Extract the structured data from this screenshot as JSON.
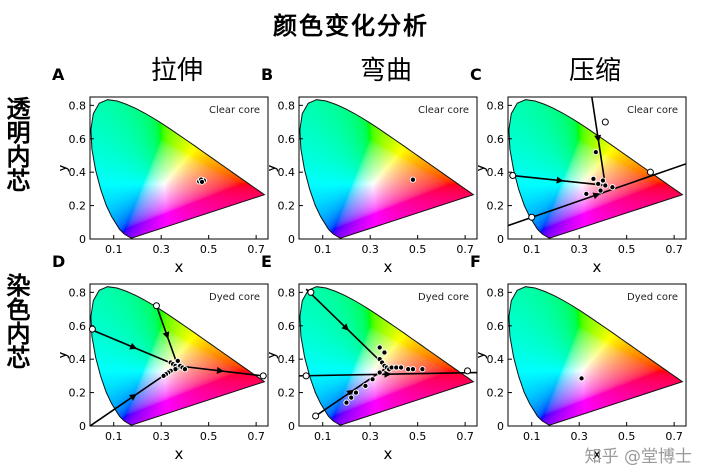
{
  "title": "颜色变化分析",
  "column_titles": [
    "拉伸",
    "弯曲",
    "压缩"
  ],
  "row_titles": [
    "透明内芯",
    "染色内芯"
  ],
  "watermark": "知乎 @堂博士",
  "colors": {
    "axes": "#000000",
    "line": "#000000",
    "marker_fill": "#ffffff"
  },
  "chart_data": [
    {
      "panel": "A",
      "type": "scatter",
      "annotation": "Clear core",
      "xlabel": "x",
      "ylabel": "y",
      "xlim": [
        0,
        0.75
      ],
      "ylim": [
        0,
        0.85
      ],
      "xticks": [
        "0.1",
        "0.3",
        "0.5",
        "0.7"
      ],
      "yticks": [
        "0",
        "0.2",
        "0.4",
        "0.6",
        "0.8"
      ],
      "x_tick_values": [
        0.1,
        0.3,
        0.5,
        0.7
      ],
      "y_tick_values": [
        0,
        0.2,
        0.4,
        0.6,
        0.8
      ],
      "lines": [],
      "points": [
        [
          0.46,
          0.345
        ],
        [
          0.47,
          0.348
        ],
        [
          0.475,
          0.352
        ],
        [
          0.48,
          0.35
        ],
        [
          0.468,
          0.355
        ],
        [
          0.472,
          0.342
        ]
      ],
      "open_points": []
    },
    {
      "panel": "B",
      "type": "scatter",
      "annotation": "Clear core",
      "xlabel": "x",
      "ylabel": "y",
      "xlim": [
        0,
        0.75
      ],
      "ylim": [
        0,
        0.85
      ],
      "xticks": [
        "0.1",
        "0.3",
        "0.5",
        "0.7"
      ],
      "yticks": [
        "0",
        "0.2",
        "0.4",
        "0.6",
        "0.8"
      ],
      "x_tick_values": [
        0.1,
        0.3,
        0.5,
        0.7
      ],
      "y_tick_values": [
        0,
        0.2,
        0.4,
        0.6,
        0.8
      ],
      "lines": [],
      "points": [
        [
          0.48,
          0.355
        ]
      ],
      "open_points": []
    },
    {
      "panel": "C",
      "type": "scatter",
      "annotation": "Clear core",
      "xlabel": "x",
      "ylabel": "y",
      "xlim": [
        0,
        0.75
      ],
      "ylim": [
        0,
        0.85
      ],
      "xticks": [
        "0.1",
        "0.3",
        "0.5",
        "0.7"
      ],
      "yticks": [
        "0",
        "0.2",
        "0.4",
        "0.6",
        "0.8"
      ],
      "x_tick_values": [
        0.1,
        0.3,
        0.5,
        0.7
      ],
      "y_tick_values": [
        0,
        0.2,
        0.4,
        0.6,
        0.8
      ],
      "lines": [
        [
          [
            0.35,
            0.88
          ],
          [
            0.41,
            0.32
          ]
        ],
        [
          [
            0.02,
            0.38
          ],
          [
            0.42,
            0.32
          ]
        ],
        [
          [
            0.0,
            0.08
          ],
          [
            0.75,
            0.45
          ]
        ]
      ],
      "points": [
        [
          0.37,
          0.52
        ],
        [
          0.36,
          0.36
        ],
        [
          0.38,
          0.33
        ],
        [
          0.39,
          0.29
        ],
        [
          0.41,
          0.32
        ],
        [
          0.44,
          0.31
        ],
        [
          0.33,
          0.27
        ],
        [
          0.4,
          0.35
        ]
      ],
      "open_points": [
        [
          0.41,
          0.7
        ],
        [
          0.02,
          0.38
        ],
        [
          0.1,
          0.13
        ],
        [
          0.6,
          0.4
        ]
      ]
    },
    {
      "panel": "D",
      "type": "scatter",
      "annotation": "Dyed core",
      "xlabel": "x",
      "ylabel": "y",
      "xlim": [
        0,
        0.75
      ],
      "ylim": [
        0,
        0.85
      ],
      "xticks": [
        "0.1",
        "0.3",
        "0.5",
        "0.7"
      ],
      "yticks": [
        "0",
        "0.2",
        "0.4",
        "0.6",
        "0.8"
      ],
      "x_tick_values": [
        0.1,
        0.3,
        0.5,
        0.7
      ],
      "y_tick_values": [
        0,
        0.2,
        0.4,
        0.6,
        0.8
      ],
      "lines": [
        [
          [
            0.28,
            0.72
          ],
          [
            0.37,
            0.36
          ]
        ],
        [
          [
            0.0,
            0.58
          ],
          [
            0.37,
            0.36
          ]
        ],
        [
          [
            0.0,
            0.0
          ],
          [
            0.37,
            0.36
          ]
        ],
        [
          [
            0.37,
            0.36
          ],
          [
            0.73,
            0.3
          ]
        ]
      ],
      "points": [
        [
          0.34,
          0.38
        ],
        [
          0.35,
          0.37
        ],
        [
          0.36,
          0.36
        ],
        [
          0.37,
          0.35
        ],
        [
          0.38,
          0.36
        ],
        [
          0.36,
          0.34
        ],
        [
          0.34,
          0.33
        ],
        [
          0.33,
          0.32
        ],
        [
          0.32,
          0.31
        ],
        [
          0.31,
          0.3
        ],
        [
          0.37,
          0.39
        ],
        [
          0.39,
          0.35
        ],
        [
          0.4,
          0.34
        ]
      ],
      "open_points": [
        [
          0.28,
          0.72
        ],
        [
          0.01,
          0.58
        ],
        [
          0.73,
          0.3
        ]
      ]
    },
    {
      "panel": "E",
      "type": "scatter",
      "annotation": "Dyed core",
      "xlabel": "x",
      "ylabel": "y",
      "xlim": [
        0,
        0.75
      ],
      "ylim": [
        0,
        0.85
      ],
      "xticks": [
        "0.1",
        "0.3",
        "0.5",
        "0.7"
      ],
      "yticks": [
        "0",
        "0.2",
        "0.4",
        "0.6",
        "0.8"
      ],
      "x_tick_values": [
        0.1,
        0.3,
        0.5,
        0.7
      ],
      "y_tick_values": [
        0,
        0.2,
        0.4,
        0.6,
        0.8
      ],
      "lines": [
        [
          [
            0.03,
            0.82
          ],
          [
            0.37,
            0.35
          ]
        ],
        [
          [
            0.0,
            0.3
          ],
          [
            0.75,
            0.32
          ]
        ],
        [
          [
            0.07,
            0.06
          ],
          [
            0.37,
            0.35
          ]
        ]
      ],
      "points": [
        [
          0.34,
          0.4
        ],
        [
          0.35,
          0.38
        ],
        [
          0.36,
          0.36
        ],
        [
          0.37,
          0.35
        ],
        [
          0.38,
          0.34
        ],
        [
          0.39,
          0.35
        ],
        [
          0.41,
          0.35
        ],
        [
          0.43,
          0.35
        ],
        [
          0.46,
          0.34
        ],
        [
          0.48,
          0.34
        ],
        [
          0.52,
          0.34
        ],
        [
          0.34,
          0.32
        ],
        [
          0.31,
          0.28
        ],
        [
          0.28,
          0.24
        ],
        [
          0.24,
          0.2
        ],
        [
          0.22,
          0.17
        ],
        [
          0.2,
          0.14
        ],
        [
          0.36,
          0.44
        ],
        [
          0.34,
          0.47
        ]
      ],
      "open_points": [
        [
          0.05,
          0.8
        ],
        [
          0.03,
          0.3
        ],
        [
          0.71,
          0.33
        ],
        [
          0.07,
          0.06
        ]
      ]
    },
    {
      "panel": "F",
      "type": "scatter",
      "annotation": "Dyed core",
      "xlabel": "x",
      "ylabel": "y",
      "xlim": [
        0,
        0.75
      ],
      "ylim": [
        0,
        0.85
      ],
      "xticks": [
        "0.1",
        "0.3",
        "0.5",
        "0.7"
      ],
      "yticks": [
        "0",
        "0.2",
        "0.4",
        "0.6",
        "0.8"
      ],
      "x_tick_values": [
        0.1,
        0.3,
        0.5,
        0.7
      ],
      "y_tick_values": [
        0,
        0.2,
        0.4,
        0.6,
        0.8
      ],
      "lines": [],
      "points": [
        [
          0.31,
          0.285
        ]
      ],
      "open_points": []
    }
  ]
}
